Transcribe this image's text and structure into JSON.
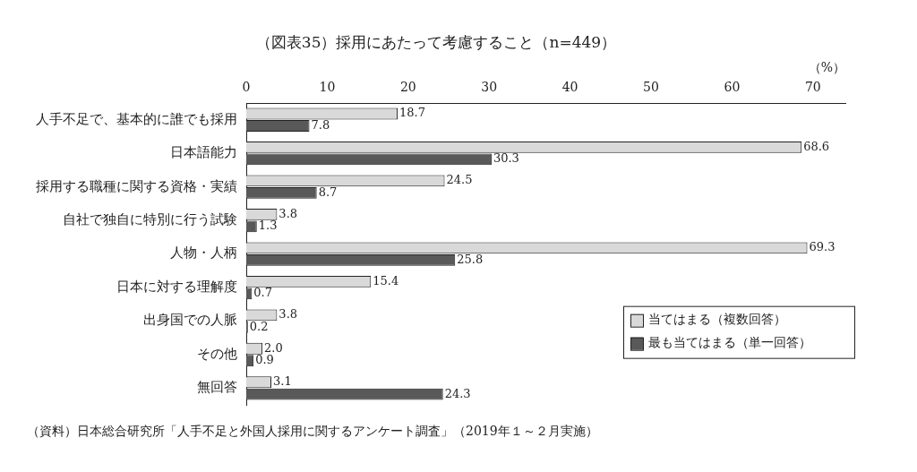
{
  "chart_data": {
    "type": "bar",
    "orientation": "horizontal",
    "title": "（図表35）採用にあたって考慮すること（n=449）",
    "x_label": "（%）",
    "source": "（資料）日本総合研究所「人手不足と外国人採用に関するアンケート調査」（2019年１～２月実施）",
    "categories": [
      "人手不足で、基本的に誰でも採用",
      "日本語能力",
      "採用する職種に関する資格・実績",
      "自社で独自に特別に行う試験",
      "人物・人柄",
      "日本に対する理解度",
      "出身国での人脈",
      "その他",
      "無回答"
    ],
    "series": [
      {
        "name": "当てはまる（複数回答）",
        "color": "#d9d9d9",
        "values": [
          18.7,
          68.6,
          24.5,
          3.8,
          69.3,
          15.4,
          3.8,
          2.0,
          3.1
        ],
        "value_labels": [
          "18.7",
          "68.6",
          "24.5",
          "3.8",
          "69.3",
          "15.4",
          "3.8",
          "2.0",
          "3.1"
        ]
      },
      {
        "name": "最も当てはまる（単一回答）",
        "color": "#595959",
        "values": [
          7.8,
          30.3,
          8.7,
          1.3,
          25.8,
          0.7,
          0.2,
          0.9,
          24.3
        ],
        "value_labels": [
          "7.8",
          "30.3",
          "8.7",
          "1.3",
          "25.8",
          "0.7",
          "0.2",
          "0.9",
          "24.3"
        ]
      }
    ],
    "xlim": [
      0,
      74
    ],
    "xticks": [
      0,
      10,
      20,
      30,
      40,
      50,
      60,
      70
    ],
    "grid": false,
    "data_labels": true,
    "legend": "lower right"
  }
}
